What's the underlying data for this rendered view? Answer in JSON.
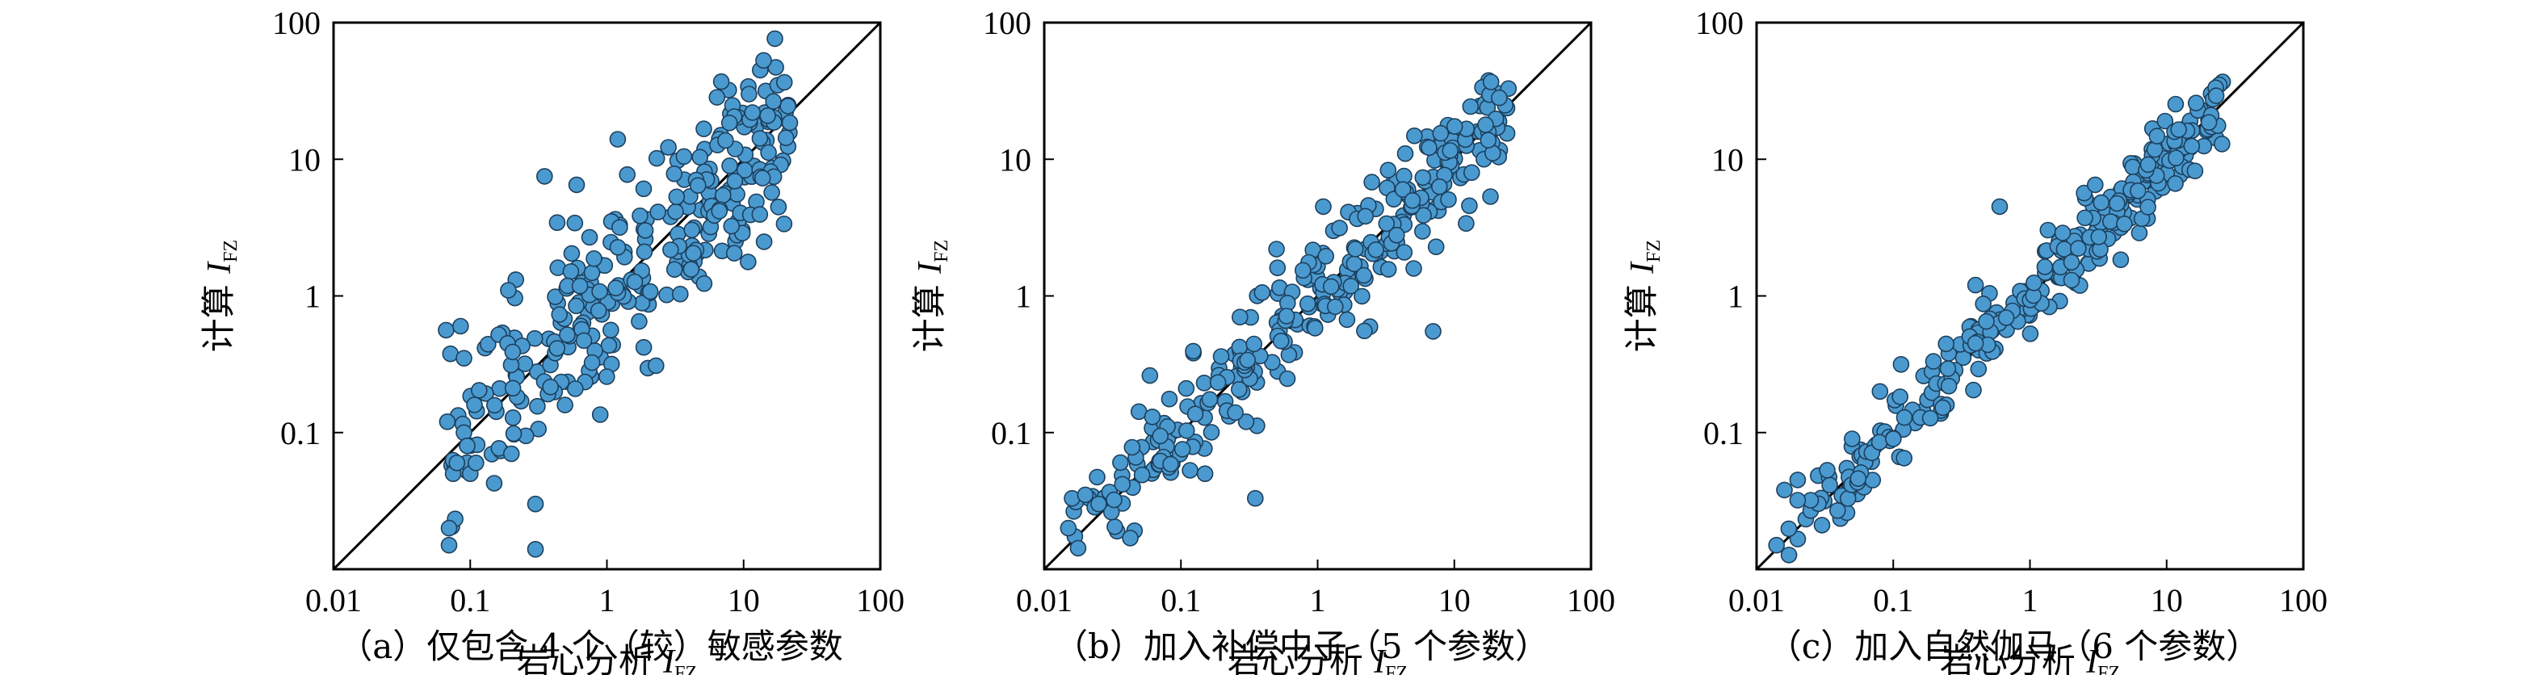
{
  "chart_data": [
    {
      "type": "scatter",
      "caption": "（a）仅包含 4 个（较）敏感参数",
      "xlabel": "岩心分析 I_FZ",
      "ylabel": "计算 I_FZ",
      "xscale": "log",
      "yscale": "log",
      "xlim": [
        0.01,
        100
      ],
      "ylim": [
        0.01,
        100
      ],
      "xticks": [
        "0.01",
        "0.1",
        "1",
        "10",
        "100"
      ],
      "yticks": [
        "0.1",
        "1",
        "10",
        "100"
      ],
      "reference_line": "y = x",
      "point_color": "#4a9ad0",
      "spread": 0.34,
      "count": 300,
      "x_range": [
        0.065,
        22
      ],
      "points": [
        [
          0.068,
          0.12
        ],
        [
          0.07,
          0.02
        ],
        [
          0.07,
          0.015
        ],
        [
          0.075,
          0.05
        ],
        [
          0.08,
          0.06
        ],
        [
          0.085,
          0.6
        ],
        [
          0.09,
          0.35
        ],
        [
          0.09,
          0.1
        ],
        [
          0.095,
          0.08
        ],
        [
          0.1,
          0.05
        ],
        [
          0.11,
          0.06
        ],
        [
          0.2,
          0.07
        ],
        [
          0.3,
          0.03
        ],
        [
          0.3,
          0.014
        ],
        [
          0.19,
          1.1
        ],
        [
          0.35,
          7.5
        ],
        [
          0.6,
          6.5
        ],
        [
          1.2,
          14
        ]
      ]
    },
    {
      "type": "scatter",
      "caption": "（b）加入补偿中子（5 个参数）",
      "xlabel": "岩心分析 I_FZ",
      "ylabel": "计算 I_FZ",
      "xscale": "log",
      "yscale": "log",
      "xlim": [
        0.01,
        100
      ],
      "ylim": [
        0.01,
        100
      ],
      "xticks": [
        "0.01",
        "0.1",
        "1",
        "10",
        "100"
      ],
      "yticks": [
        "0.1",
        "1",
        "10",
        "100"
      ],
      "reference_line": "y = x",
      "point_color": "#4a9ad0",
      "spread": 0.21,
      "count": 300,
      "x_range": [
        0.015,
        25
      ],
      "points": [
        [
          0.015,
          0.02
        ],
        [
          0.016,
          0.033
        ],
        [
          0.02,
          0.035
        ],
        [
          0.025,
          0.03
        ],
        [
          0.3,
          0.12
        ],
        [
          0.35,
          0.033
        ],
        [
          0.15,
          0.05
        ],
        [
          7,
          0.55
        ],
        [
          1.1,
          4.5
        ],
        [
          0.5,
          2.2
        ],
        [
          0.27,
          0.7
        ],
        [
          0.25,
          0.14
        ]
      ]
    },
    {
      "type": "scatter",
      "caption": "（c）加入自然伽马（6 个参数）",
      "xlabel": "岩心分析 I_FZ",
      "ylabel": "计算 I_FZ",
      "xscale": "log",
      "yscale": "log",
      "xlim": [
        0.01,
        100
      ],
      "ylim": [
        0.01,
        100
      ],
      "xticks": [
        "0.01",
        "0.1",
        "1",
        "10",
        "100"
      ],
      "yticks": [
        "0.1",
        "1",
        "10",
        "100"
      ],
      "reference_line": "y = x",
      "point_color": "#4a9ad0",
      "spread": 0.14,
      "count": 300,
      "x_range": [
        0.014,
        26
      ],
      "points": [
        [
          0.014,
          0.015
        ],
        [
          0.016,
          0.038
        ],
        [
          0.02,
          0.032
        ],
        [
          0.02,
          0.045
        ],
        [
          0.05,
          0.09
        ],
        [
          0.08,
          0.2
        ],
        [
          0.1,
          0.09
        ],
        [
          0.12,
          0.065
        ],
        [
          0.4,
          0.45
        ],
        [
          0.4,
          1.2
        ],
        [
          0.6,
          4.5
        ],
        [
          3,
          6.5
        ]
      ]
    }
  ]
}
